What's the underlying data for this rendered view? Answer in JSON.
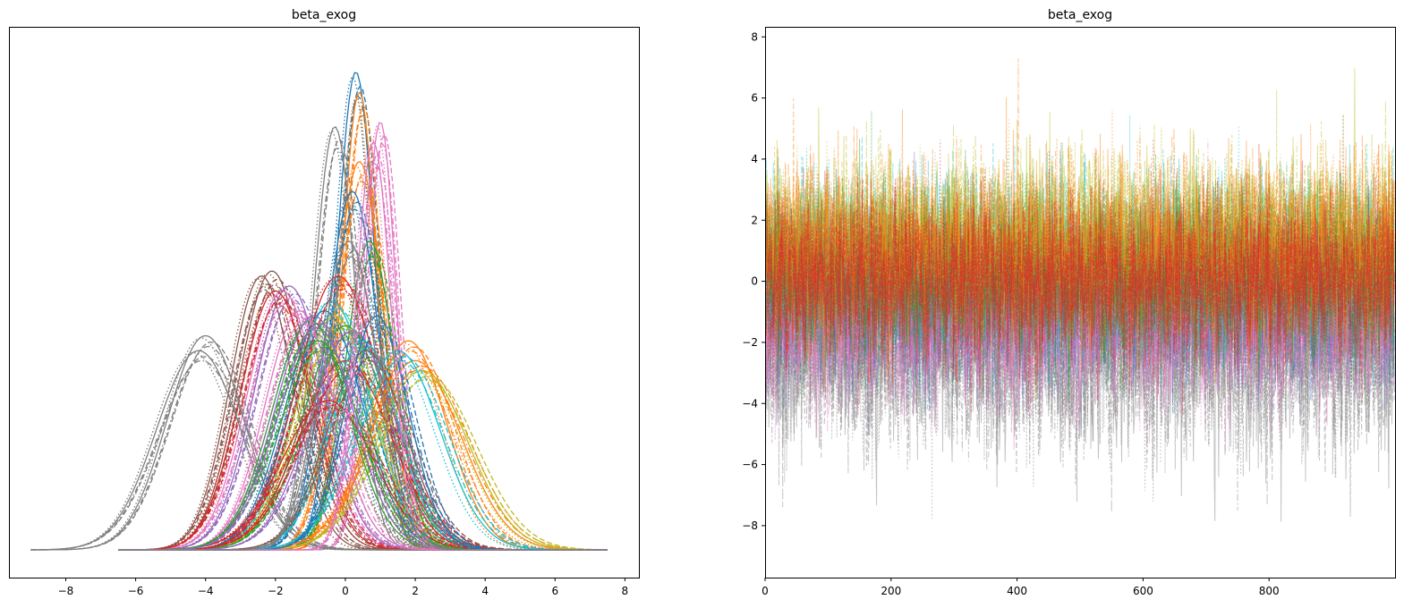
{
  "figure": {
    "background": "#ffffff"
  },
  "chart_data": [
    {
      "type": "line",
      "subtype": "kde",
      "title": "beta_exog",
      "xlabel": "",
      "ylabel": "",
      "xlim": [
        -9.6,
        8.4
      ],
      "ylim": [
        0,
        1
      ],
      "xticks": [
        -8,
        -6,
        -4,
        -2,
        0,
        2,
        4,
        6,
        8
      ],
      "xtick_labels": [
        "−8",
        "−6",
        "−4",
        "−2",
        "0",
        "2",
        "4",
        "6",
        "8"
      ],
      "yticks_visible": false,
      "grid": false,
      "linestyles": [
        "solid",
        "dashed",
        "dotted",
        "dashdot"
      ],
      "series": [
        {
          "color": "#1f77b4",
          "mu": 0.3,
          "sd": 0.55,
          "peak": 0.96,
          "support": [
            -6.5,
            7.5
          ]
        },
        {
          "color": "#ff7f0e",
          "mu": 0.4,
          "sd": 0.5,
          "peak": 0.92,
          "support": [
            -6.5,
            7.5
          ]
        },
        {
          "color": "#e377c2",
          "mu": 1.0,
          "sd": 0.45,
          "peak": 0.86,
          "support": [
            -6.5,
            7.5
          ]
        },
        {
          "color": "#7f7f7f",
          "mu": -0.3,
          "sd": 0.6,
          "peak": 0.85,
          "support": [
            -6.5,
            7.5
          ]
        },
        {
          "color": "#ff7f0e",
          "mu": 0.4,
          "sd": 0.7,
          "peak": 0.78,
          "support": [
            -6.5,
            7.5
          ]
        },
        {
          "color": "#1f77b4",
          "mu": 0.2,
          "sd": 0.75,
          "peak": 0.72,
          "support": [
            -6.5,
            7.5
          ]
        },
        {
          "color": "#2ca02c",
          "mu": 0.7,
          "sd": 0.7,
          "peak": 0.62,
          "support": [
            -6.5,
            7.5
          ]
        },
        {
          "color": "#8c564b",
          "mu": -2.4,
          "sd": 0.9,
          "peak": 0.55,
          "support": [
            -6.5,
            7.5
          ]
        },
        {
          "color": "#8c564b",
          "mu": -2.1,
          "sd": 0.95,
          "peak": 0.56,
          "support": [
            -6.5,
            7.5
          ]
        },
        {
          "color": "#e377c2",
          "mu": -1.8,
          "sd": 1.0,
          "peak": 0.52,
          "support": [
            -6.5,
            7.5
          ]
        },
        {
          "color": "#9467bd",
          "mu": -1.6,
          "sd": 1.0,
          "peak": 0.53,
          "support": [
            -6.5,
            7.5
          ]
        },
        {
          "color": "#d62728",
          "mu": -2.0,
          "sd": 1.0,
          "peak": 0.52,
          "support": [
            -6.5,
            7.5
          ]
        },
        {
          "color": "#7f7f7f",
          "mu": -4.0,
          "sd": 1.1,
          "peak": 0.43,
          "support": [
            -9.0,
            3.0
          ]
        },
        {
          "color": "#7f7f7f",
          "mu": -4.2,
          "sd": 1.2,
          "peak": 0.4,
          "support": [
            -9.0,
            3.0
          ]
        },
        {
          "color": "#17becf",
          "mu": -0.4,
          "sd": 1.1,
          "peak": 0.5,
          "support": [
            -6.5,
            7.5
          ]
        },
        {
          "color": "#1f77b4",
          "mu": -0.6,
          "sd": 1.1,
          "peak": 0.48,
          "support": [
            -6.5,
            7.5
          ]
        },
        {
          "color": "#bcbd22",
          "mu": -0.3,
          "sd": 1.1,
          "peak": 0.47,
          "support": [
            -6.5,
            7.5
          ]
        },
        {
          "color": "#2ca02c",
          "mu": 0.0,
          "sd": 1.2,
          "peak": 0.45,
          "support": [
            -6.5,
            7.5
          ]
        },
        {
          "color": "#d62728",
          "mu": -0.2,
          "sd": 1.2,
          "peak": 0.55,
          "support": [
            -6.5,
            7.5
          ]
        },
        {
          "color": "#9467bd",
          "mu": 0.2,
          "sd": 1.2,
          "peak": 0.44,
          "support": [
            -6.5,
            7.5
          ]
        },
        {
          "color": "#d62728",
          "mu": 0.0,
          "sd": 1.3,
          "peak": 0.38,
          "support": [
            -6.5,
            7.5
          ]
        },
        {
          "color": "#17becf",
          "mu": 0.5,
          "sd": 1.0,
          "peak": 0.42,
          "support": [
            -6.5,
            7.5
          ]
        },
        {
          "color": "#ff7f0e",
          "mu": 2.0,
          "sd": 1.3,
          "peak": 0.38,
          "support": [
            -6.5,
            7.5
          ]
        },
        {
          "color": "#ff7f0e",
          "mu": 1.8,
          "sd": 1.1,
          "peak": 0.42,
          "support": [
            -6.5,
            7.5
          ]
        },
        {
          "color": "#bcbd22",
          "mu": 2.2,
          "sd": 1.3,
          "peak": 0.36,
          "support": [
            -6.5,
            7.5
          ]
        },
        {
          "color": "#17becf",
          "mu": 1.5,
          "sd": 1.2,
          "peak": 0.4,
          "support": [
            -6.5,
            7.5
          ]
        },
        {
          "color": "#2ca02c",
          "mu": -1.0,
          "sd": 1.1,
          "peak": 0.46,
          "support": [
            -6.5,
            7.5
          ]
        },
        {
          "color": "#e377c2",
          "mu": -1.3,
          "sd": 1.0,
          "peak": 0.48,
          "support": [
            -6.5,
            7.5
          ]
        },
        {
          "color": "#8c564b",
          "mu": 0.6,
          "sd": 1.1,
          "peak": 0.4,
          "support": [
            -6.5,
            7.5
          ]
        },
        {
          "color": "#d62728",
          "mu": -0.5,
          "sd": 1.3,
          "peak": 0.3,
          "support": [
            -6.5,
            7.5
          ]
        },
        {
          "color": "#2ca02c",
          "mu": -0.8,
          "sd": 1.2,
          "peak": 0.42,
          "support": [
            -6.5,
            7.5
          ]
        },
        {
          "color": "#1f77b4",
          "mu": 0.9,
          "sd": 0.9,
          "peak": 0.47,
          "support": [
            -6.5,
            7.5
          ]
        },
        {
          "color": "#9467bd",
          "mu": -0.9,
          "sd": 1.1,
          "peak": 0.47,
          "support": [
            -6.5,
            7.5
          ]
        },
        {
          "color": "#e377c2",
          "mu": 0.8,
          "sd": 0.5,
          "peak": 0.82,
          "support": [
            -6.5,
            7.5
          ]
        },
        {
          "color": "#7f7f7f",
          "mu": 0.1,
          "sd": 0.8,
          "peak": 0.62,
          "support": [
            -6.5,
            7.5
          ]
        }
      ]
    },
    {
      "type": "line",
      "subtype": "trace",
      "title": "beta_exog",
      "xlabel": "",
      "ylabel": "",
      "xlim": [
        0,
        1000
      ],
      "ylim": [
        -9.7,
        8.3
      ],
      "xticks": [
        0,
        200,
        400,
        600,
        800
      ],
      "xtick_labels": [
        "0",
        "200",
        "400",
        "600",
        "800"
      ],
      "yticks": [
        8,
        6,
        4,
        2,
        0,
        -2,
        -4,
        -6,
        -8
      ],
      "ytick_labels": [
        "8",
        "6",
        "4",
        "2",
        "0",
        "−2",
        "−4",
        "−6",
        "−8"
      ],
      "grid": false,
      "draws_per_chain": 1000,
      "series": [
        {
          "color": "#7f7f7f",
          "mu": -2.4,
          "sd": 1.6
        },
        {
          "color": "#9467bd",
          "mu": -0.9,
          "sd": 1.2
        },
        {
          "color": "#1f77b4",
          "mu": -0.6,
          "sd": 1.2
        },
        {
          "color": "#e377c2",
          "mu": -1.2,
          "sd": 1.3
        },
        {
          "color": "#17becf",
          "mu": 0.8,
          "sd": 1.3
        },
        {
          "color": "#bcbd22",
          "mu": 1.4,
          "sd": 1.3
        },
        {
          "color": "#2ca02c",
          "mu": 0.0,
          "sd": 1.3
        },
        {
          "color": "#ff7f0e",
          "mu": 1.0,
          "sd": 1.4
        },
        {
          "color": "#d62728",
          "mu": 0.0,
          "sd": 1.3
        }
      ]
    }
  ]
}
